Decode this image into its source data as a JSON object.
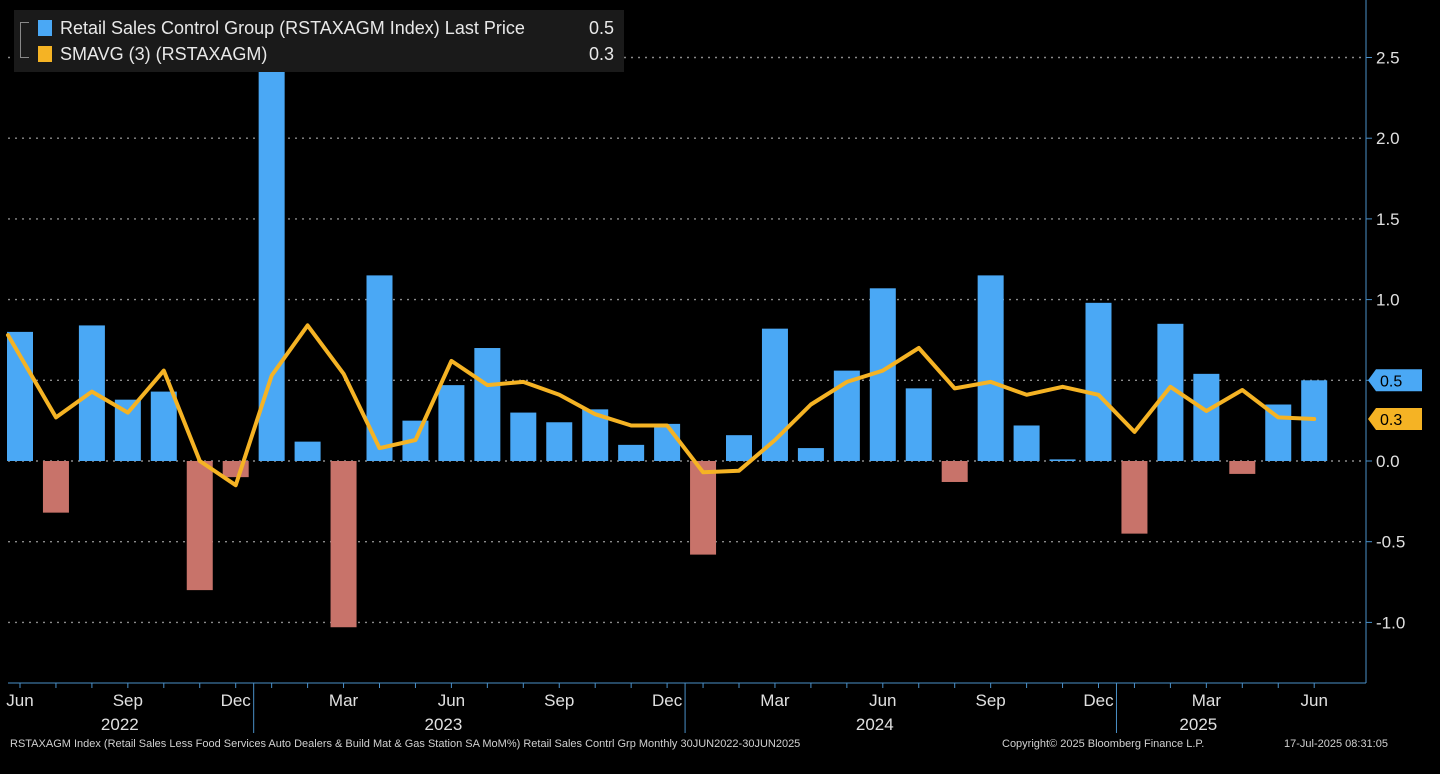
{
  "legend": {
    "series1_label": "Retail Sales Control Group (RSTAXAGM Index) Last Price",
    "series1_value": "0.5",
    "series2_label": "SMAVG (3) (RSTAXAGM)",
    "series2_value": "0.3"
  },
  "footer": {
    "description": "RSTAXAGM Index (Retail Sales Less Food Services Auto Dealers & Build Mat & Gas Station SA MoM%) Retail Sales Contrl Grp  Monthly 30JUN2022-30JUN2025",
    "copyright": "Copyright© 2025 Bloomberg Finance L.P.",
    "timestamp": "17-Jul-2025 08:31:05"
  },
  "chart_data": {
    "type": "bar",
    "title": "",
    "xlabel": "",
    "ylabel": "",
    "ylim": [
      -1.4,
      2.85
    ],
    "yticks": [
      2.5,
      2.0,
      1.5,
      1.0,
      0.5,
      0.0,
      -0.5,
      -1.0
    ],
    "ytick_labels": [
      "2.5",
      "2.0",
      "1.5",
      "1.0",
      "0.5",
      "0.0",
      "-0.5",
      "-1.0"
    ],
    "grid": true,
    "legend_position": "top-left",
    "categories": [
      "Jun 2022",
      "Jul 2022",
      "Aug 2022",
      "Sep 2022",
      "Oct 2022",
      "Nov 2022",
      "Dec 2022",
      "Jan 2023",
      "Feb 2023",
      "Mar 2023",
      "Apr 2023",
      "May 2023",
      "Jun 2023",
      "Jul 2023",
      "Aug 2023",
      "Sep 2023",
      "Oct 2023",
      "Nov 2023",
      "Dec 2023",
      "Jan 2024",
      "Feb 2024",
      "Mar 2024",
      "Apr 2024",
      "May 2024",
      "Jun 2024",
      "Jul 2024",
      "Aug 2024",
      "Sep 2024",
      "Oct 2024",
      "Nov 2024",
      "Dec 2024",
      "Jan 2025",
      "Feb 2025",
      "Mar 2025",
      "Apr 2025",
      "May 2025",
      "Jun 2025"
    ],
    "x_month_labels": [
      {
        "index": 0,
        "label": "Jun"
      },
      {
        "index": 3,
        "label": "Sep"
      },
      {
        "index": 6,
        "label": "Dec"
      },
      {
        "index": 9,
        "label": "Mar"
      },
      {
        "index": 12,
        "label": "Jun"
      },
      {
        "index": 15,
        "label": "Sep"
      },
      {
        "index": 18,
        "label": "Dec"
      },
      {
        "index": 21,
        "label": "Mar"
      },
      {
        "index": 24,
        "label": "Jun"
      },
      {
        "index": 27,
        "label": "Sep"
      },
      {
        "index": 30,
        "label": "Dec"
      },
      {
        "index": 33,
        "label": "Mar"
      },
      {
        "index": 36,
        "label": "Jun"
      }
    ],
    "x_year_labels": [
      {
        "index": 3,
        "label": "2022"
      },
      {
        "index": 12,
        "label": "2023"
      },
      {
        "index": 24,
        "label": "2024"
      },
      {
        "index": 33,
        "label": "2025"
      }
    ],
    "series": [
      {
        "name": "Retail Sales Control Group (RSTAXAGM Index) Last Price",
        "type": "bar",
        "color_positive": "#4aa8f5",
        "color_negative": "#c8736a",
        "values": [
          0.8,
          -0.32,
          0.84,
          0.38,
          0.43,
          -0.8,
          -0.1,
          2.5,
          0.12,
          -1.03,
          1.15,
          0.25,
          0.47,
          0.7,
          0.3,
          0.24,
          0.32,
          0.1,
          0.23,
          -0.58,
          0.16,
          0.82,
          0.08,
          0.56,
          1.07,
          0.45,
          -0.13,
          1.15,
          0.22,
          0.01,
          0.98,
          -0.45,
          0.85,
          0.54,
          -0.08,
          0.35,
          0.5
        ]
      },
      {
        "name": "SMAVG (3) (RSTAXAGM)",
        "type": "line",
        "color": "#f5b324",
        "values": [
          0.78,
          0.27,
          0.43,
          0.3,
          0.56,
          0.0,
          -0.15,
          0.53,
          0.84,
          0.54,
          0.08,
          0.13,
          0.62,
          0.47,
          0.49,
          0.41,
          0.29,
          0.22,
          0.22,
          -0.07,
          -0.06,
          0.13,
          0.35,
          0.49,
          0.56,
          0.7,
          0.45,
          0.49,
          0.41,
          0.46,
          0.41,
          0.18,
          0.46,
          0.31,
          0.44,
          0.27,
          0.26
        ]
      }
    ],
    "value_badges": [
      {
        "label": "0.5",
        "value": 0.5,
        "color": "#4aa8f5"
      },
      {
        "label": "0.3",
        "value": 0.26,
        "color": "#f5b324"
      }
    ]
  }
}
